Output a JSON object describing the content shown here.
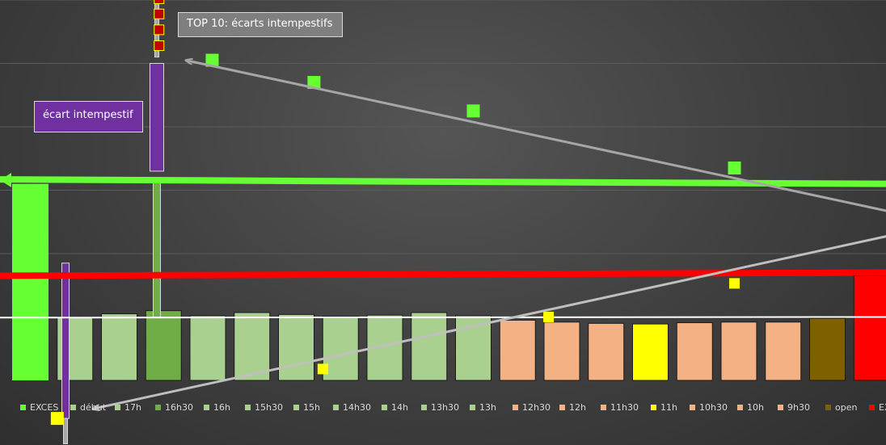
{
  "callouts": {
    "top10": "TOP 10: écarts intempestifs",
    "ecart": "écart intempestif"
  },
  "chart_data": {
    "type": "bar",
    "categories": [
      "EXCES",
      "début",
      "17h",
      "16h30",
      "16h",
      "15h30",
      "15h",
      "14h30",
      "14h",
      "13h30",
      "13h",
      "12h30",
      "12h",
      "11h30",
      "11h",
      "10h30",
      "10h",
      "9h30",
      "open",
      "EXCES"
    ],
    "values": [
      31,
      10,
      10.5,
      11,
      10.2,
      10.7,
      10.4,
      10.1,
      10.3,
      10.7,
      10.2,
      9.5,
      9.2,
      9.0,
      8.9,
      9.1,
      9.2,
      9.2,
      9.8,
      16.5
    ],
    "colors": [
      "#66ff33",
      "#a9d08e",
      "#a9d08e",
      "#70ad47",
      "#a9d08e",
      "#a9d08e",
      "#a9d08e",
      "#a9d08e",
      "#a9d08e",
      "#a9d08e",
      "#a9d08e",
      "#f4b183",
      "#f4b183",
      "#f4b183",
      "#ffff00",
      "#f4b183",
      "#f4b183",
      "#f4b183",
      "#7f6000",
      "#ff0000"
    ],
    "reference_lines": [
      {
        "color": "#66ff33",
        "start": 31.7,
        "end": 31.0
      },
      {
        "color": "#ff0000",
        "start": 16.5,
        "end": 17.0
      },
      {
        "color": "#ffffff",
        "start": 9.9,
        "end": 10.0
      }
    ],
    "scatter_markers": [
      {
        "color": "#66ff33",
        "points": [
          [
            4.1,
            50.5
          ],
          [
            6.4,
            47
          ],
          [
            10,
            42.5
          ],
          [
            15.9,
            33.5
          ]
        ]
      },
      {
        "color": "#ffff00",
        "points": [
          [
            0.6,
            -6
          ],
          [
            6.6,
            1.8
          ],
          [
            11.7,
            10
          ],
          [
            15.9,
            15.3
          ]
        ]
      },
      {
        "color": "#c00000",
        "points": [
          [
            2.9,
            60.2
          ],
          [
            2.9,
            57.8
          ],
          [
            2.9,
            55.3
          ],
          [
            2.9,
            52.8
          ]
        ]
      }
    ],
    "candles": [
      {
        "color": "#7030a0",
        "category": 1,
        "low": -6,
        "high": 18.5
      },
      {
        "color": "#70ad47",
        "category": 3,
        "low": 10,
        "high": 32
      },
      {
        "color": "#7030a0",
        "category": 3,
        "low": 33,
        "high": 50
      },
      {
        "color": "#a6a6a6",
        "category": 3,
        "low": 51,
        "high": 60.5
      },
      {
        "color": "#a6a6a6",
        "category": 1,
        "low": -10,
        "high": -6
      }
    ],
    "arrows": [
      {
        "from": [
          20.5,
          25
        ],
        "to": [
          3.5,
          50.5
        ]
      },
      {
        "from": [
          20.5,
          24.5
        ],
        "to": [
          1.4,
          -4.5
        ]
      }
    ],
    "ylim": [
      0,
      60
    ],
    "grid": true,
    "legend_position": "bottom"
  }
}
